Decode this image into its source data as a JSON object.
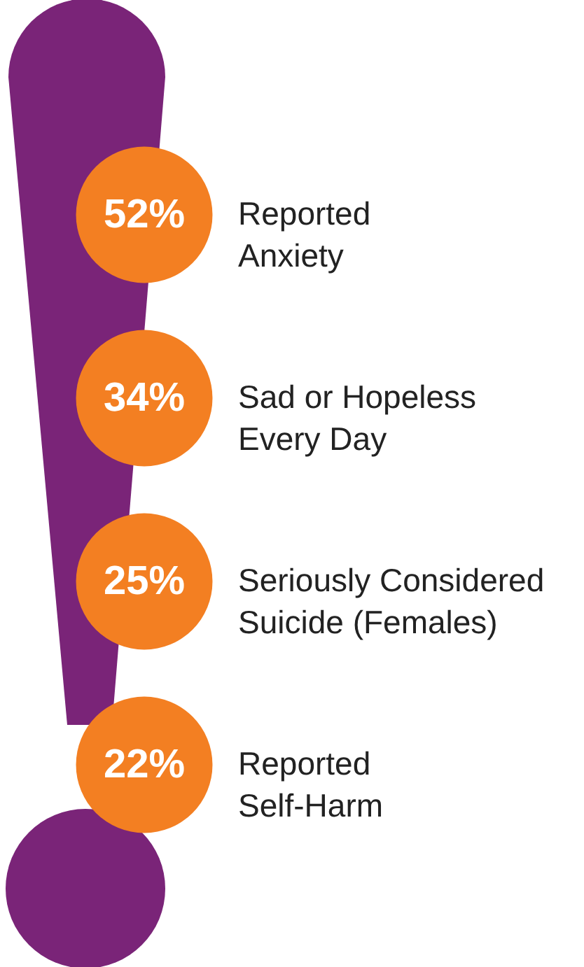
{
  "chart_data": {
    "type": "other",
    "categories": [
      "Reported Anxiety",
      "Sad or Hopeless Every Day",
      "Seriously Considered Suicide (Females)",
      "Reported Self-Harm"
    ],
    "values": [
      52,
      34,
      25,
      22
    ],
    "value_labels": [
      "52%",
      "34%",
      "25%",
      "22%"
    ],
    "color": "#f37f22"
  }
}
